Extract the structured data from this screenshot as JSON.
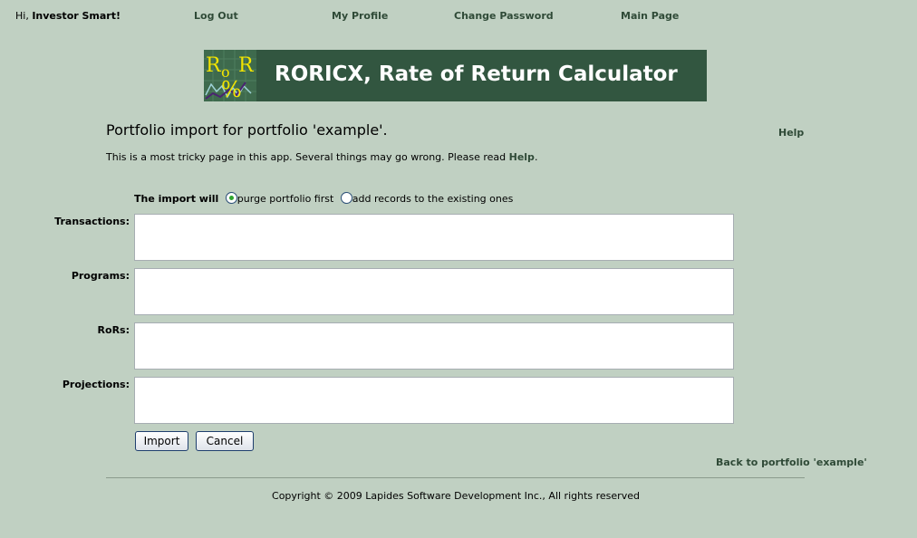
{
  "header": {
    "greeting": "Hi, ",
    "user": "Investor Smart!",
    "nav": [
      "Log Out",
      "My Profile",
      "Change Password",
      "Main Page"
    ]
  },
  "banner": {
    "title": "RORICX, Rate of Return Calculator",
    "logo_text": "RoR%"
  },
  "page": {
    "title": "Portfolio import for portfolio 'example'.",
    "help_link": "Help",
    "intro": "This is a most tricky page in this app. Several things may go wrong. Please read ",
    "intro_link": "Help",
    "intro_end": "."
  },
  "form": {
    "mode_label": "The import will",
    "options": [
      {
        "label": "purge portfolio first",
        "selected": true
      },
      {
        "label": "add records to the existing ones",
        "selected": false
      }
    ],
    "fields": [
      {
        "label": "Transactions:",
        "value": ""
      },
      {
        "label": "Programs:",
        "value": ""
      },
      {
        "label": "RoRs:",
        "value": ""
      },
      {
        "label": "Projections:",
        "value": ""
      }
    ],
    "import_label": "Import",
    "cancel_label": "Cancel"
  },
  "back_link": "Back to portfolio 'example'",
  "footer": "Copyright © 2009 Lapides Software Development Inc., All rights reserved"
}
